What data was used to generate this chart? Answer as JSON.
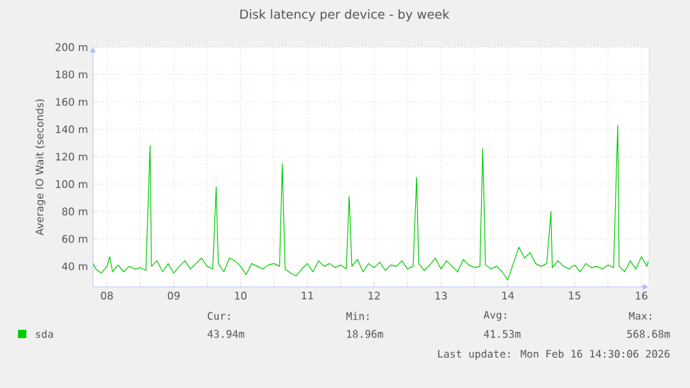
{
  "chart_data": {
    "type": "line",
    "title": "Disk latency per device - by week",
    "ylabel": "Average IO Wait (seconds)",
    "xlim": [
      "2026-02-08T07:00",
      "2026-02-16T14:30"
    ],
    "ylim": [
      25,
      200
    ],
    "xticks": [
      {
        "value": "2026-02-08T12:00",
        "label": "08"
      },
      {
        "value": "2026-02-09T00:00",
        "label": null
      },
      {
        "value": "2026-02-09T12:00",
        "label": "09"
      },
      {
        "value": "2026-02-10T00:00",
        "label": null
      },
      {
        "value": "2026-02-10T12:00",
        "label": "10"
      },
      {
        "value": "2026-02-11T00:00",
        "label": null
      },
      {
        "value": "2026-02-11T12:00",
        "label": "11"
      },
      {
        "value": "2026-02-12T00:00",
        "label": null
      },
      {
        "value": "2026-02-12T12:00",
        "label": "12"
      },
      {
        "value": "2026-02-13T00:00",
        "label": null
      },
      {
        "value": "2026-02-13T12:00",
        "label": "13"
      },
      {
        "value": "2026-02-14T00:00",
        "label": null
      },
      {
        "value": "2026-02-14T12:00",
        "label": "14"
      },
      {
        "value": "2026-02-15T00:00",
        "label": null
      },
      {
        "value": "2026-02-15T12:00",
        "label": "15"
      },
      {
        "value": "2026-02-16T00:00",
        "label": null
      },
      {
        "value": "2026-02-16T12:00",
        "label": "16"
      }
    ],
    "yticks": [
      {
        "value": 40,
        "label": "40 m"
      },
      {
        "value": 60,
        "label": "60 m"
      },
      {
        "value": 80,
        "label": "80 m"
      },
      {
        "value": 100,
        "label": "100 m"
      },
      {
        "value": 120,
        "label": "120 m"
      },
      {
        "value": 140,
        "label": "140 m"
      },
      {
        "value": 160,
        "label": "160 m"
      },
      {
        "value": 180,
        "label": "180 m"
      },
      {
        "value": 200,
        "label": "200 m"
      }
    ],
    "grid": true,
    "legend": "bottom left",
    "marker": "none",
    "series": [
      {
        "name": "sda",
        "color": "#00cc00",
        "x": [
          "2026-02-08T07:00",
          "2026-02-08T08:00",
          "2026-02-08T10:00",
          "2026-02-08T12:00",
          "2026-02-08T13:00",
          "2026-02-08T14:00",
          "2026-02-08T16:00",
          "2026-02-08T18:00",
          "2026-02-08T20:00",
          "2026-02-08T22:00",
          "2026-02-09T00:00",
          "2026-02-09T02:00",
          "2026-02-09T03:30",
          "2026-02-09T04:00",
          "2026-02-09T06:00",
          "2026-02-09T08:00",
          "2026-02-09T10:00",
          "2026-02-09T12:00",
          "2026-02-09T14:00",
          "2026-02-09T16:00",
          "2026-02-09T18:00",
          "2026-02-09T20:00",
          "2026-02-09T22:00",
          "2026-02-10T00:00",
          "2026-02-10T02:00",
          "2026-02-10T03:15",
          "2026-02-10T04:00",
          "2026-02-10T06:00",
          "2026-02-10T08:00",
          "2026-02-10T10:00",
          "2026-02-10T12:00",
          "2026-02-10T14:00",
          "2026-02-10T16:00",
          "2026-02-10T18:00",
          "2026-02-10T20:00",
          "2026-02-10T22:00",
          "2026-02-11T00:00",
          "2026-02-11T02:00",
          "2026-02-11T03:00",
          "2026-02-11T04:00",
          "2026-02-11T06:00",
          "2026-02-11T08:00",
          "2026-02-11T10:00",
          "2026-02-11T12:00",
          "2026-02-11T14:00",
          "2026-02-11T16:00",
          "2026-02-11T18:00",
          "2026-02-11T20:00",
          "2026-02-11T22:00",
          "2026-02-12T00:00",
          "2026-02-12T02:00",
          "2026-02-12T03:00",
          "2026-02-12T04:00",
          "2026-02-12T06:00",
          "2026-02-12T08:00",
          "2026-02-12T10:00",
          "2026-02-12T12:00",
          "2026-02-12T14:00",
          "2026-02-12T16:00",
          "2026-02-12T18:00",
          "2026-02-12T20:00",
          "2026-02-12T22:00",
          "2026-02-13T00:00",
          "2026-02-13T02:00",
          "2026-02-13T03:15",
          "2026-02-13T04:00",
          "2026-02-13T06:00",
          "2026-02-13T08:00",
          "2026-02-13T10:00",
          "2026-02-13T12:00",
          "2026-02-13T14:00",
          "2026-02-13T16:00",
          "2026-02-13T18:00",
          "2026-02-13T20:00",
          "2026-02-13T22:00",
          "2026-02-14T00:00",
          "2026-02-14T02:00",
          "2026-02-14T03:00",
          "2026-02-14T04:00",
          "2026-02-14T06:00",
          "2026-02-14T08:00",
          "2026-02-14T10:00",
          "2026-02-14T12:00",
          "2026-02-14T14:00",
          "2026-02-14T16:00",
          "2026-02-14T18:00",
          "2026-02-14T20:00",
          "2026-02-14T22:00",
          "2026-02-15T00:00",
          "2026-02-15T02:00",
          "2026-02-15T03:30",
          "2026-02-15T04:00",
          "2026-02-15T06:00",
          "2026-02-15T08:00",
          "2026-02-15T10:00",
          "2026-02-15T12:00",
          "2026-02-15T14:00",
          "2026-02-15T16:00",
          "2026-02-15T18:00",
          "2026-02-15T20:00",
          "2026-02-15T22:00",
          "2026-02-16T00:00",
          "2026-02-16T02:00",
          "2026-02-16T03:30",
          "2026-02-16T04:00",
          "2026-02-16T06:00",
          "2026-02-16T08:00",
          "2026-02-16T10:00",
          "2026-02-16T12:00",
          "2026-02-16T14:00",
          "2026-02-16T14:30"
        ],
        "values": [
          42,
          38,
          35,
          40,
          47,
          36,
          41,
          36,
          40,
          38,
          39,
          37,
          128,
          40,
          44,
          36,
          42,
          35,
          40,
          44,
          38,
          42,
          46,
          40,
          38,
          98,
          42,
          36,
          46,
          44,
          40,
          34,
          42,
          40,
          38,
          41,
          42,
          40,
          115,
          38,
          35,
          33,
          38,
          42,
          36,
          44,
          40,
          42,
          39,
          41,
          38,
          91,
          40,
          45,
          36,
          42,
          39,
          43,
          37,
          41,
          40,
          44,
          38,
          40,
          105,
          42,
          37,
          41,
          46,
          38,
          44,
          40,
          36,
          45,
          41,
          39,
          40,
          126,
          41,
          38,
          40,
          36,
          30,
          42,
          54,
          46,
          50,
          42,
          40,
          42,
          80,
          39,
          44,
          40,
          38,
          41,
          36,
          42,
          39,
          40,
          38,
          41,
          39,
          143,
          40,
          36,
          44,
          38,
          47,
          40,
          44
        ]
      }
    ],
    "annotations": [
      "Cur:",
      "43.94m",
      "Min:",
      "18.96m",
      "Avg:",
      "41.53m",
      "Max:",
      "568.68m",
      "Last update: Mon Feb 16 14:30:06 2026"
    ]
  }
}
